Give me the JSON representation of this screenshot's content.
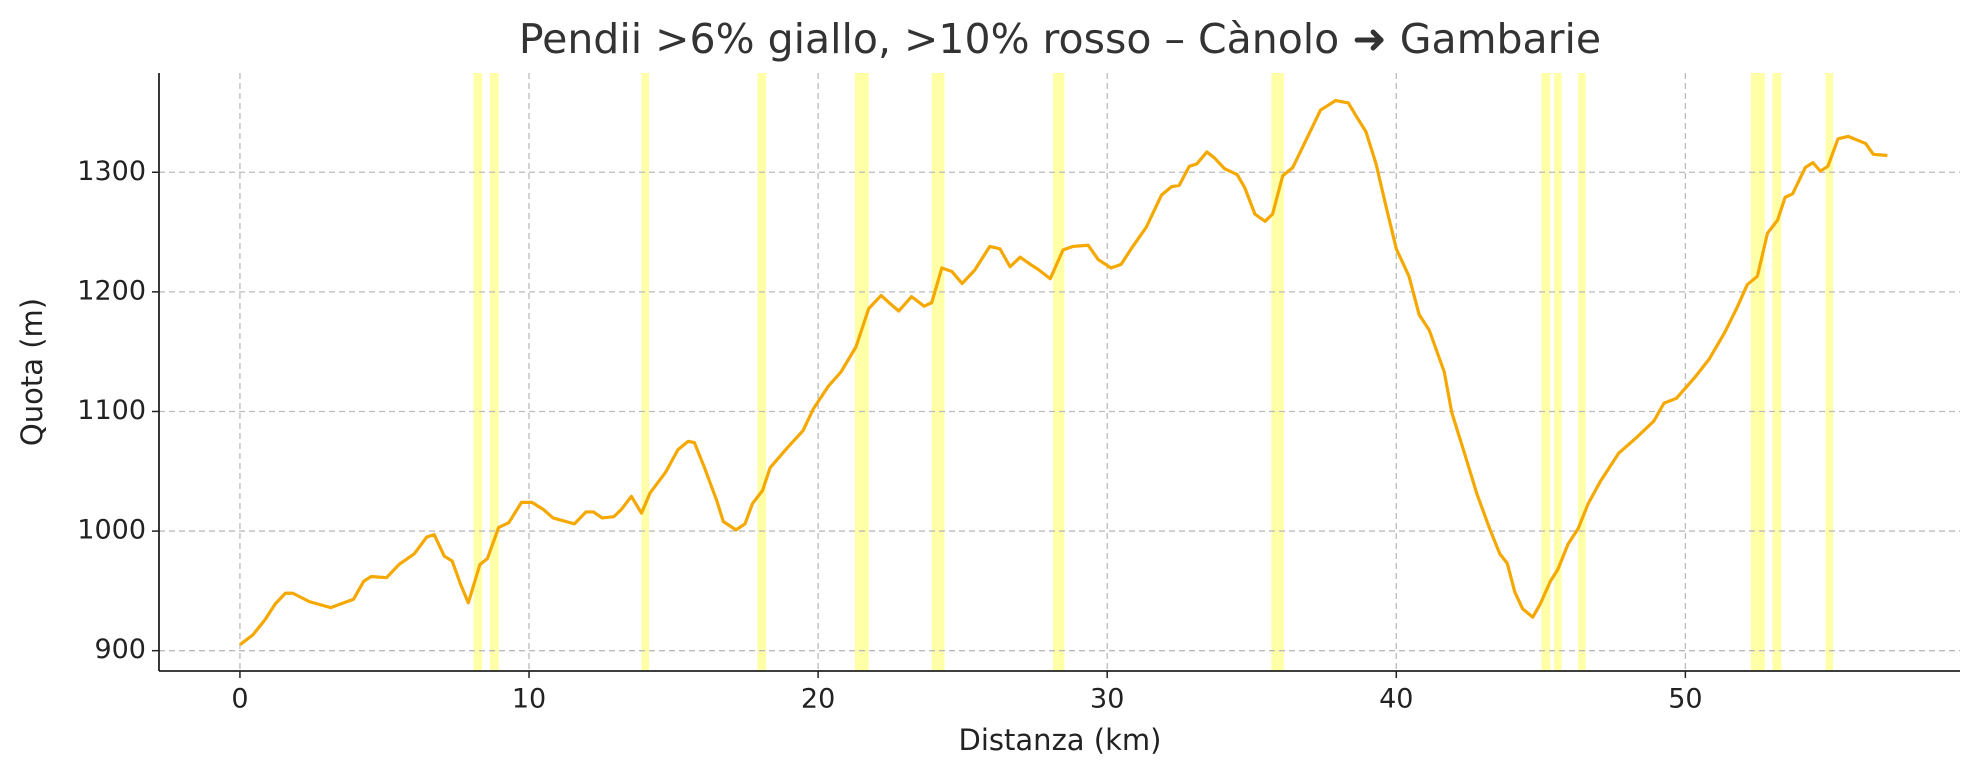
{
  "chart_data": {
    "type": "line",
    "title": "Pendii >6% giallo, >10% rosso – Cànolo ➜ Gambarie",
    "xlabel": "Distanza (km)",
    "ylabel": "Quota (m)",
    "color": "#f5a800",
    "highlight_color": "#ffff99",
    "grid": true,
    "xlim": [
      -2.8,
      59.5
    ],
    "ylim": [
      883,
      1383
    ],
    "xticks": [
      0,
      10,
      20,
      30,
      40,
      50
    ],
    "yticks": [
      900,
      1000,
      1100,
      1200,
      1300
    ],
    "highlights": [
      [
        8.08,
        8.38
      ],
      [
        8.65,
        8.95
      ],
      [
        13.89,
        14.15
      ],
      [
        17.9,
        18.2
      ],
      [
        21.27,
        21.75
      ],
      [
        23.93,
        24.37
      ],
      [
        28.12,
        28.52
      ],
      [
        35.68,
        36.11
      ],
      [
        45.02,
        45.33
      ],
      [
        45.46,
        45.72
      ],
      [
        46.29,
        46.55
      ],
      [
        52.27,
        52.75
      ],
      [
        53.01,
        53.32
      ],
      [
        54.85,
        55.11
      ]
    ],
    "x": [
      0,
      0.44,
      0.87,
      1.22,
      1.57,
      1.83,
      2.4,
      3.14,
      3.93,
      4.28,
      4.54,
      5.07,
      5.5,
      6.03,
      6.46,
      6.72,
      7.07,
      7.34,
      7.64,
      7.9,
      8.3,
      8.56,
      8.95,
      9.3,
      9.74,
      10.1,
      10.5,
      10.83,
      11.57,
      11.97,
      12.23,
      12.53,
      12.93,
      13.19,
      13.54,
      13.89,
      14.19,
      14.72,
      15.15,
      15.5,
      15.72,
      16.07,
      16.5,
      16.72,
      17.16,
      17.47,
      17.73,
      18.08,
      18.34,
      18.95,
      19.48,
      19.83,
      20.35,
      20.79,
      21.31,
      21.75,
      22.18,
      22.45,
      22.79,
      23.23,
      23.67,
      23.93,
      24.28,
      24.63,
      24.98,
      25.41,
      25.94,
      26.29,
      26.64,
      26.99,
      27.34,
      27.6,
      28.03,
      28.47,
      28.82,
      29.34,
      29.69,
      30.13,
      30.48,
      30.83,
      31.35,
      31.88,
      32.23,
      32.49,
      32.84,
      33.1,
      33.45,
      33.71,
      34.06,
      34.5,
      34.76,
      35.11,
      35.46,
      35.72,
      36.07,
      36.42,
      36.86,
      37.38,
      37.64,
      37.9,
      38.34,
      38.69,
      38.95,
      39.3,
      39.65,
      40.0,
      40.44,
      40.79,
      41.14,
      41.66,
      41.92,
      42.36,
      42.79,
      43.23,
      43.58,
      43.84,
      44.1,
      44.37,
      44.72,
      44.98,
      45.33,
      45.59,
      45.94,
      46.29,
      46.64,
      47.07,
      47.69,
      48.3,
      48.91,
      49.26,
      49.69,
      50.31,
      50.83,
      51.36,
      51.79,
      52.14,
      52.49,
      52.84,
      53.19,
      53.45,
      53.71,
      54.15,
      54.41,
      54.67,
      54.93,
      55.28,
      55.63,
      56.24,
      56.5,
      56.99
    ],
    "values": [
      905,
      913,
      926,
      939,
      948,
      948,
      941,
      936,
      943,
      958,
      962,
      961,
      972,
      981,
      995,
      997,
      979,
      975,
      955,
      940,
      972,
      977,
      1003,
      1007,
      1024,
      1024,
      1018,
      1011,
      1006,
      1016,
      1016,
      1011,
      1012,
      1018,
      1029,
      1015,
      1032,
      1049,
      1068,
      1075,
      1074,
      1053,
      1025,
      1008,
      1001,
      1006,
      1023,
      1034,
      1053,
      1070,
      1084,
      1102,
      1121,
      1133,
      1154,
      1186,
      1197,
      1191,
      1184,
      1196,
      1188,
      1191,
      1220,
      1217,
      1207,
      1218,
      1238,
      1236,
      1221,
      1229,
      1223,
      1219,
      1211,
      1235,
      1238,
      1239,
      1227,
      1220,
      1223,
      1236,
      1254,
      1281,
      1288,
      1289,
      1305,
      1307,
      1317,
      1312,
      1303,
      1298,
      1287,
      1265,
      1259,
      1265,
      1297,
      1304,
      1326,
      1352,
      1356,
      1360,
      1358,
      1344,
      1334,
      1307,
      1271,
      1236,
      1213,
      1181,
      1168,
      1133,
      1099,
      1065,
      1031,
      1002,
      981,
      973,
      949,
      935,
      928,
      939,
      958,
      968,
      989,
      1002,
      1023,
      1042,
      1065,
      1078,
      1092,
      1107,
      1111,
      1128,
      1144,
      1166,
      1187,
      1206,
      1213,
      1249,
      1260,
      1279,
      1282,
      1304,
      1308,
      1301,
      1305,
      1328,
      1330,
      1324,
      1315,
      1314
    ]
  }
}
